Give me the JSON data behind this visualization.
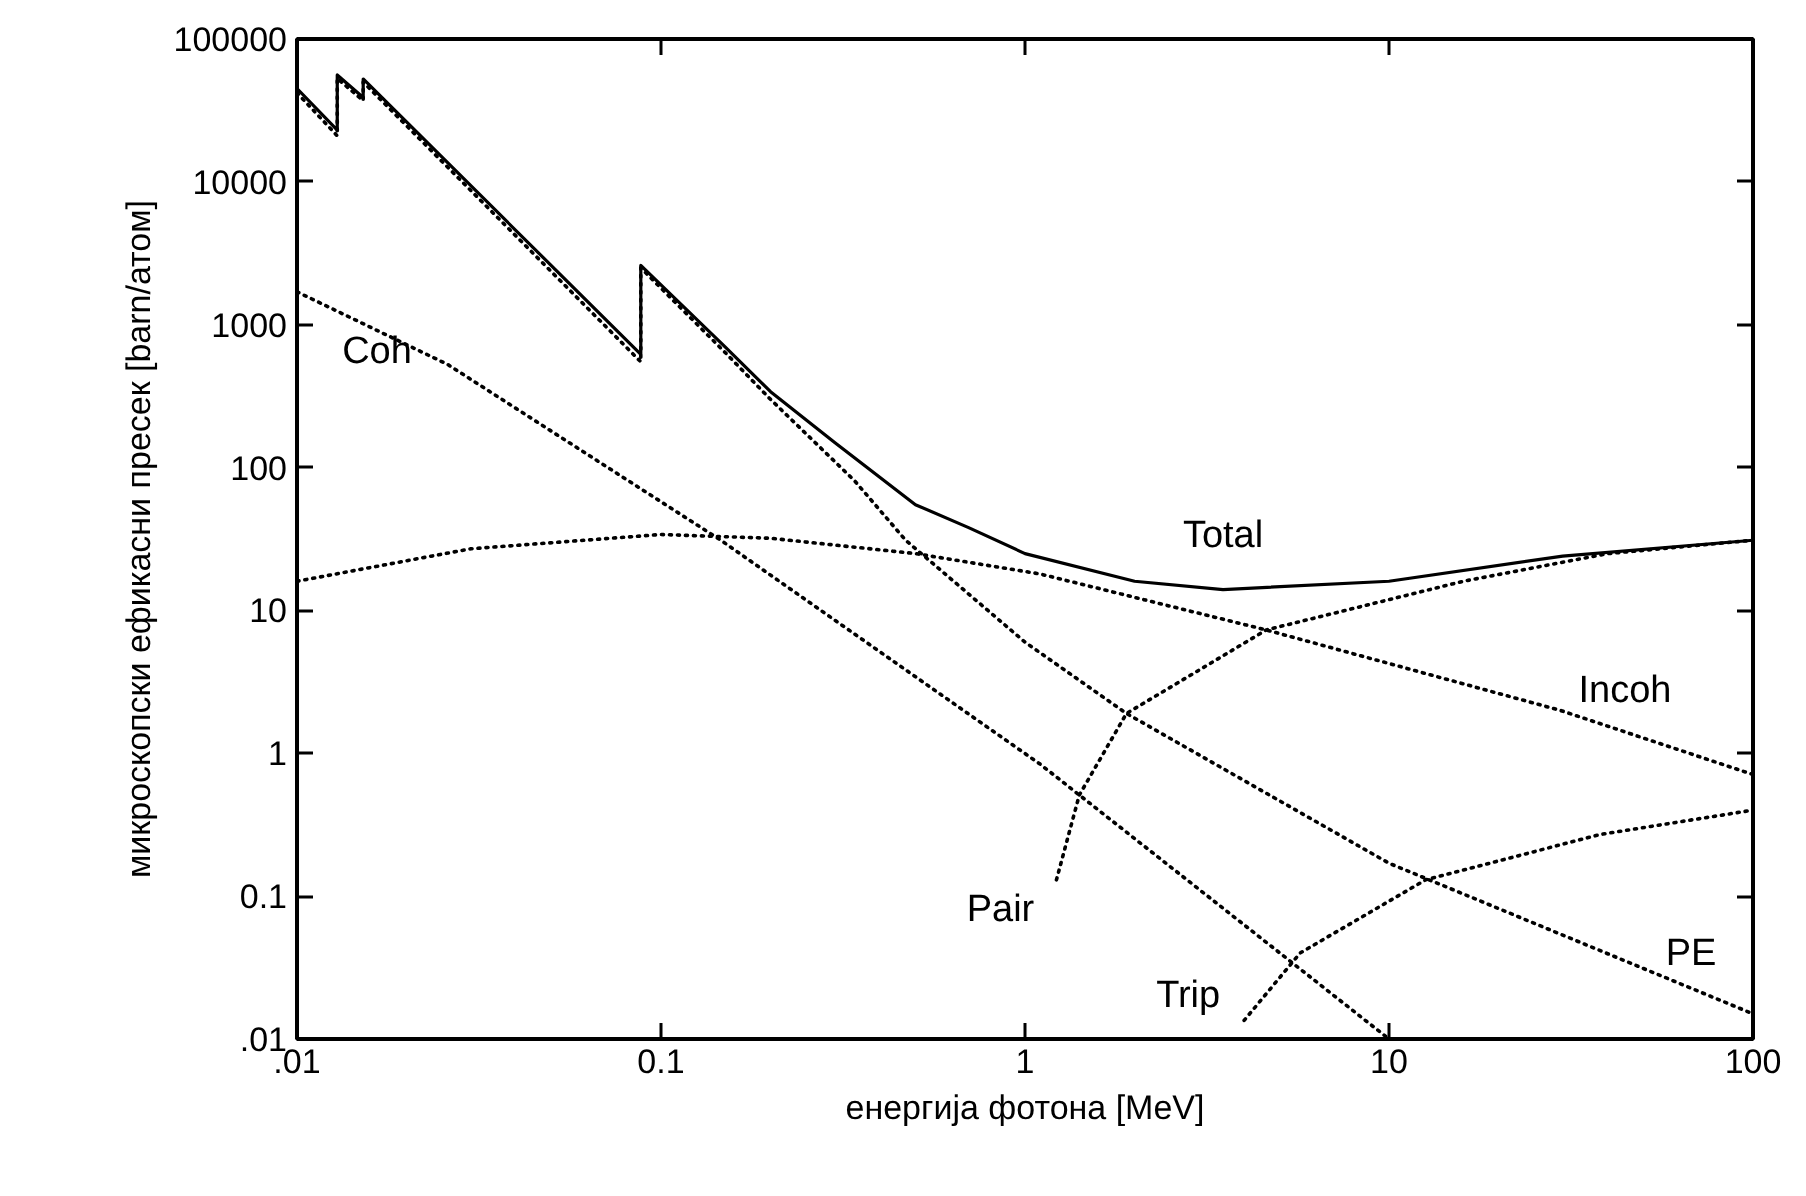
{
  "chart_data": {
    "type": "line",
    "xlabel": "енергија фотона [MeV]",
    "ylabel": "микроскопски ефикасни пресек [barn/атом]",
    "log": "xy",
    "grid": false,
    "xlim": [
      0.01,
      100
    ],
    "ylim": [
      0.01,
      100000
    ],
    "xticks": [
      {
        "value": 0.01,
        "label": ".01"
      },
      0.1,
      1,
      10,
      100
    ],
    "yticks": [
      {
        "value": 0.01,
        "label": ".01"
      },
      0.1,
      1,
      10,
      100,
      1000,
      10000,
      100000
    ],
    "series": [
      {
        "color": "#000000",
        "line_style": "solid",
        "x": [
          0.01,
          0.0129,
          0.0129,
          0.0152,
          0.0152,
          0.088,
          0.088,
          0.15,
          0.2,
          0.3,
          0.5,
          0.7,
          1,
          2,
          3.5,
          10,
          30,
          100
        ],
        "values": [
          45000,
          23000,
          56000,
          39000,
          52500,
          620,
          2600,
          700,
          340,
          150,
          55,
          38,
          25,
          16,
          14,
          16,
          24,
          31
        ]
      },
      {
        "color": "#000000",
        "line_style": "dotted",
        "x": [
          0.01,
          0.0129,
          0.0129,
          0.0152,
          0.0152,
          0.088,
          0.088,
          0.15,
          0.2,
          0.34,
          0.47,
          1,
          1.9,
          10,
          100
        ],
        "values": [
          42000,
          21000,
          53000,
          37000,
          50000,
          550,
          2500,
          640,
          300,
          81,
          31,
          6,
          1.9,
          0.17,
          0.015
        ]
      },
      {
        "color": "#000000",
        "line_style": "dotted",
        "x": [
          0.01,
          0.026,
          0.146,
          1.1,
          10
        ],
        "values": [
          1700,
          525,
          31,
          0.84,
          0.01
        ]
      },
      {
        "color": "#000000",
        "line_style": "dotted",
        "x": [
          0.01,
          0.03,
          0.1,
          0.2,
          0.5,
          1.1,
          4.6,
          29.5,
          100
        ],
        "values": [
          16,
          27,
          34,
          32,
          25,
          18,
          7.3,
          2.0,
          0.71
        ]
      },
      {
        "color": "#000000",
        "line_style": "dotted",
        "x": [
          1.22,
          1.41,
          1.9,
          4.6,
          16,
          40,
          100
        ],
        "values": [
          0.13,
          0.51,
          1.9,
          7.3,
          16,
          25,
          31
        ]
      },
      {
        "color": "#000000",
        "line_style": "dotted",
        "x": [
          4,
          5.7,
          12.6,
          38,
          100
        ],
        "values": [
          0.0135,
          0.04,
          0.13,
          0.27,
          0.4
        ]
      }
    ],
    "annotations": [
      "Total",
      "PE",
      "Coh",
      "Incoh",
      "Pair",
      "Trip"
    ]
  }
}
